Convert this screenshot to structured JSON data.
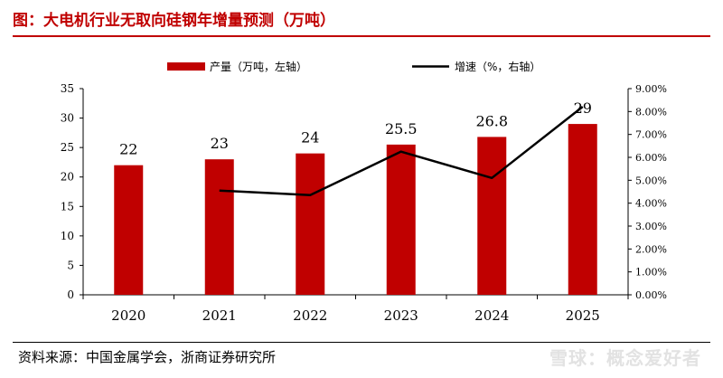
{
  "title": "图：大电机行业无取向硅钢年增量预测（万吨）",
  "source": "资料来源：中国金属学会，浙商证券研究所",
  "watermark": "雪球：概念爱好者",
  "colors": {
    "bar": "#c00000",
    "line": "#000000",
    "title": "#c00000"
  },
  "chart_data": {
    "type": "bar",
    "title": "大电机行业无取向硅钢年增量预测（万吨）",
    "categories": [
      "2020",
      "2021",
      "2022",
      "2023",
      "2024",
      "2025"
    ],
    "series": [
      {
        "name": "产量（万吨，左轴）",
        "type": "bar",
        "axis": "left",
        "values": [
          22,
          23,
          24,
          25.5,
          26.8,
          29
        ],
        "labels": [
          "22",
          "23",
          "24",
          "25.5",
          "26.8",
          "29"
        ]
      },
      {
        "name": "增速（%，右轴）",
        "type": "line",
        "axis": "right",
        "values": [
          null,
          4.55,
          4.35,
          6.25,
          5.1,
          8.21
        ]
      }
    ],
    "y_left": {
      "min": 0,
      "max": 35,
      "step": 5,
      "ticks": [
        "0",
        "5",
        "10",
        "15",
        "20",
        "25",
        "30",
        "35"
      ]
    },
    "y_right": {
      "min": 0,
      "max": 9,
      "step": 1,
      "ticks": [
        "0.00%",
        "1.00%",
        "2.00%",
        "3.00%",
        "4.00%",
        "5.00%",
        "6.00%",
        "7.00%",
        "8.00%",
        "9.00%"
      ]
    },
    "legend": {
      "position": "top"
    },
    "grid": false
  }
}
